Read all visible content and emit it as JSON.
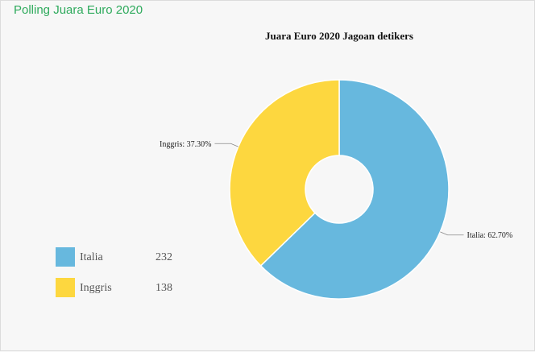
{
  "header": {
    "title": "Polling Juara Euro 2020"
  },
  "chart_data": {
    "type": "pie",
    "donut": true,
    "title": "Juara Euro 2020 Jagoan detikers",
    "slices": [
      {
        "name": "Italia",
        "value": 232,
        "percent_label": "62.70%",
        "color": "#67b8de"
      },
      {
        "name": "Inggris",
        "value": 138,
        "percent_label": "37.30%",
        "color": "#fdd73f"
      }
    ],
    "legend_placement": "bottom-left"
  }
}
